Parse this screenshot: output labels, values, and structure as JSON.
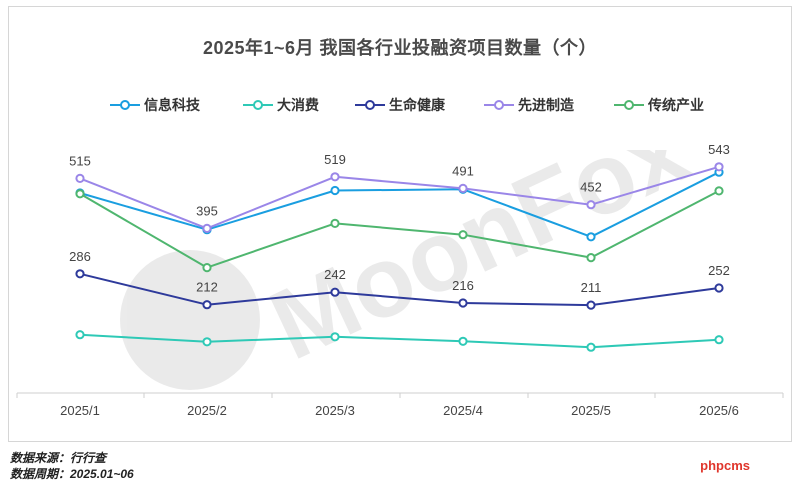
{
  "chart_data": {
    "type": "line",
    "title": "2025年1~6月 我国各行业投融资项目数量（个）",
    "categories": [
      "2025/1",
      "2025/2",
      "2025/3",
      "2025/4",
      "2025/5",
      "2025/6"
    ],
    "series": [
      {
        "name": "信息科技",
        "color": "#1a9ee0",
        "values": [
          480,
          392,
          486,
          489,
          375,
          530
        ]
      },
      {
        "name": "大消费",
        "color": "#2ec9b6",
        "values": [
          140,
          123,
          135,
          124,
          110,
          128
        ]
      },
      {
        "name": "生命健康",
        "color": "#2e3a9b",
        "values": [
          286,
          212,
          242,
          216,
          211,
          252
        ],
        "labels": [
          "286",
          "212",
          "242",
          "216",
          "211",
          "252"
        ]
      },
      {
        "name": "先进制造",
        "color": "#9a86e8",
        "values": [
          515,
          395,
          519,
          491,
          452,
          543
        ],
        "labels": [
          "515",
          "395",
          "519",
          "491",
          "452",
          "543"
        ]
      },
      {
        "name": "传统产业",
        "color": "#4fb66f",
        "values": [
          478,
          301,
          407,
          380,
          325,
          485
        ]
      }
    ],
    "ylim": [
      0,
      600
    ],
    "grid": false,
    "legend_position": "top"
  },
  "footer": {
    "source": "数据来源：行行查",
    "period": "数据周期：2025.01~06"
  },
  "brand": "phpcms",
  "watermark": "MoonFox"
}
